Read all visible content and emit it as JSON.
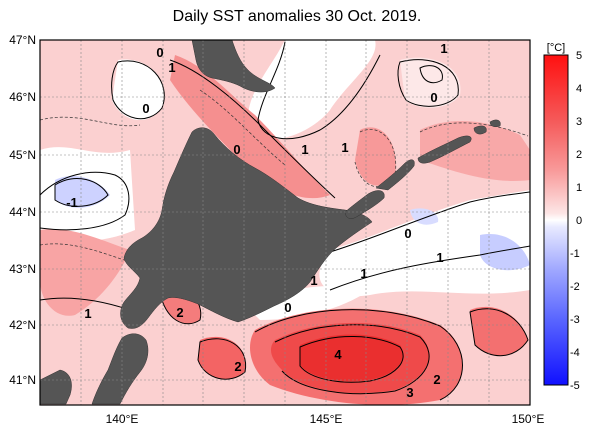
{
  "title": "Daily SST anomalies 30 Oct. 2019.",
  "lat_labels": [
    "47°N",
    "46°N",
    "45°N",
    "44°N",
    "43°N",
    "42°N",
    "41°N"
  ],
  "lon_labels": [
    "140°E",
    "145°E",
    "150°E"
  ],
  "contour_labels": [
    "0",
    "1",
    "0",
    "1",
    "0",
    "1",
    "1",
    "-1",
    "0",
    "1",
    "1",
    "1",
    "0",
    "1",
    "2",
    "2",
    "4",
    "3",
    "2"
  ],
  "colorbar": {
    "unit": "[°C]",
    "ticks": [
      "5",
      "4",
      "3",
      "2",
      "1",
      "0",
      "-1",
      "-2",
      "-3",
      "-4",
      "-5"
    ],
    "colors": {
      "pos_strong": "#ff1a1a",
      "pos_mid": "#f46b6b",
      "pos_light": "#fbc7c7",
      "neutral": "#ffffff",
      "neg_light": "#cfd3ff",
      "neg_strong": "#1a1aff",
      "land": "#555555"
    }
  }
}
